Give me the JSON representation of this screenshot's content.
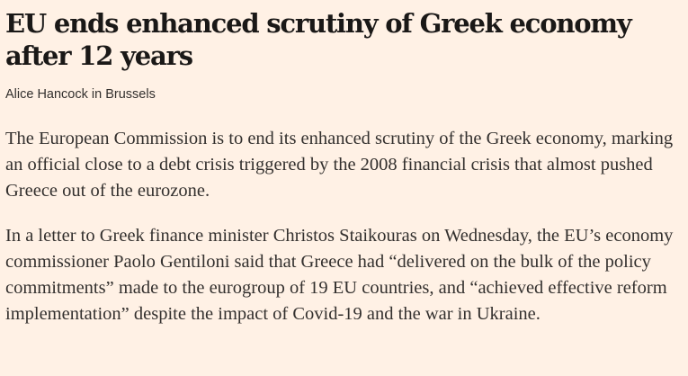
{
  "article": {
    "headline": "EU ends enhanced scrutiny of Greek economy after 12 years",
    "byline": "Alice Hancock in Brussels",
    "paragraphs": [
      "The European Commission is to end its enhanced scrutiny of the Greek economy, marking an official close to a debt crisis triggered by the 2008 financial crisis that almost pushed Greece out of the eurozone.",
      "In a letter to Greek finance minister Christos Staikouras on Wednesday, the EU’s economy commissioner Paolo Gentiloni said that Greece had “delivered on the bulk of the policy commitments” made to the eurogroup of 19 EU countries, and “achieved effective reform implementation” despite the impact of Covid-19 and the war in Ukraine."
    ]
  }
}
